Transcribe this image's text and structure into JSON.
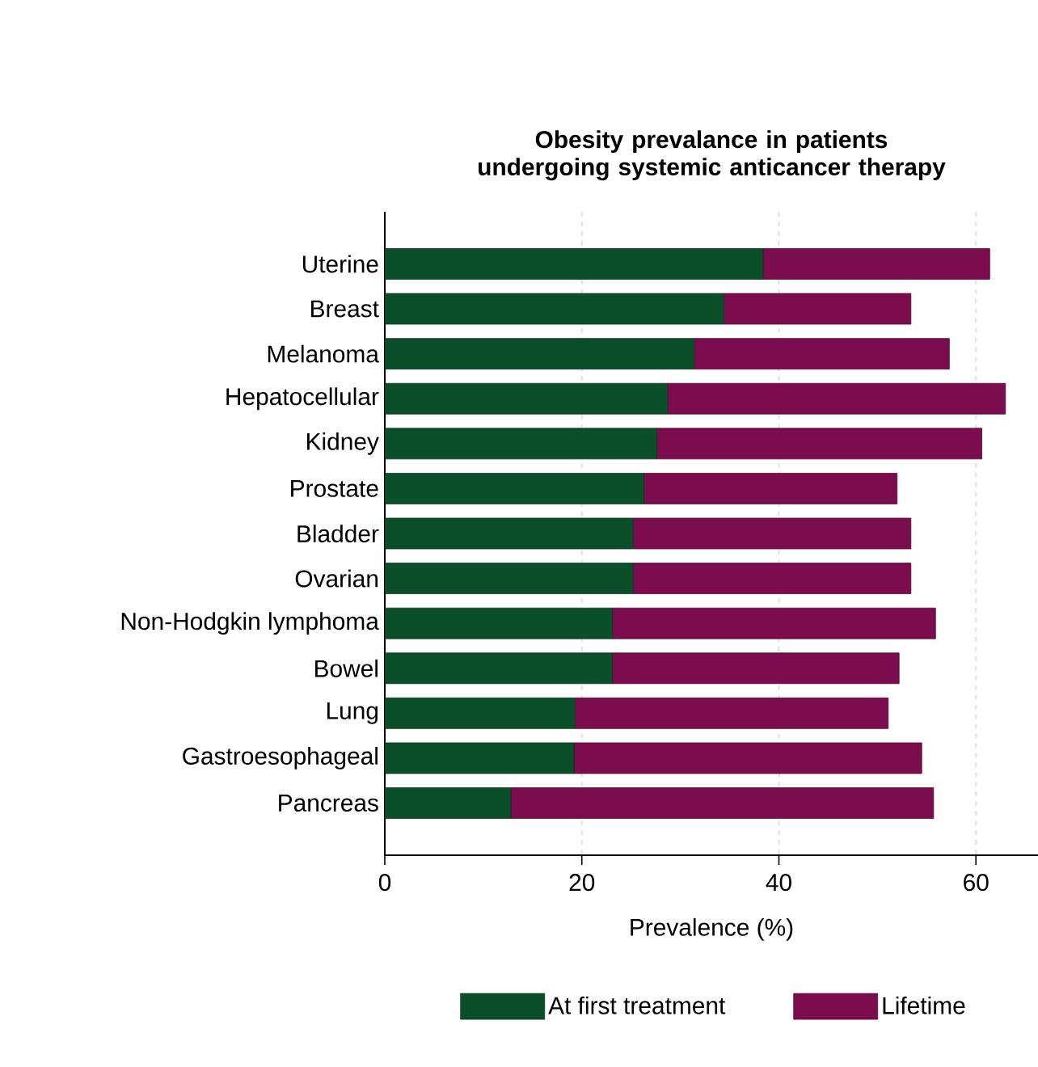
{
  "chart_data": {
    "type": "bar",
    "orientation": "horizontal",
    "stacked": true,
    "title": "Obesity prevalance in patients undergoing systemic anticancer therapy",
    "xlabel": "Prevalence (%)",
    "categories": [
      "Uterine",
      "Breast",
      "Melanoma",
      "Hepatocellular",
      "Kidney",
      "Prostate",
      "Bladder",
      "Ovarian",
      "Non-Hodgkin lymphoma",
      "Bowel",
      "Lung",
      "Gastroesophageal",
      "Pancreas"
    ],
    "series": [
      {
        "name": "At first treatment",
        "color": "#0a4f2a",
        "values": [
          38.4,
          34.4,
          31.4,
          28.7,
          27.6,
          26.3,
          25.2,
          25.2,
          23.1,
          23.1,
          19.3,
          19.2,
          12.8
        ]
      },
      {
        "name": "Lifetime",
        "color": "#7b0d4e",
        "values": [
          23.0,
          19.0,
          25.9,
          34.3,
          33.0,
          25.7,
          28.2,
          28.2,
          32.8,
          29.1,
          31.8,
          35.3,
          42.9
        ]
      }
    ],
    "xlim": [
      0,
      66.3
    ],
    "xticks": [
      0,
      20,
      40,
      60
    ],
    "grid": "x",
    "legend": "bottom"
  }
}
